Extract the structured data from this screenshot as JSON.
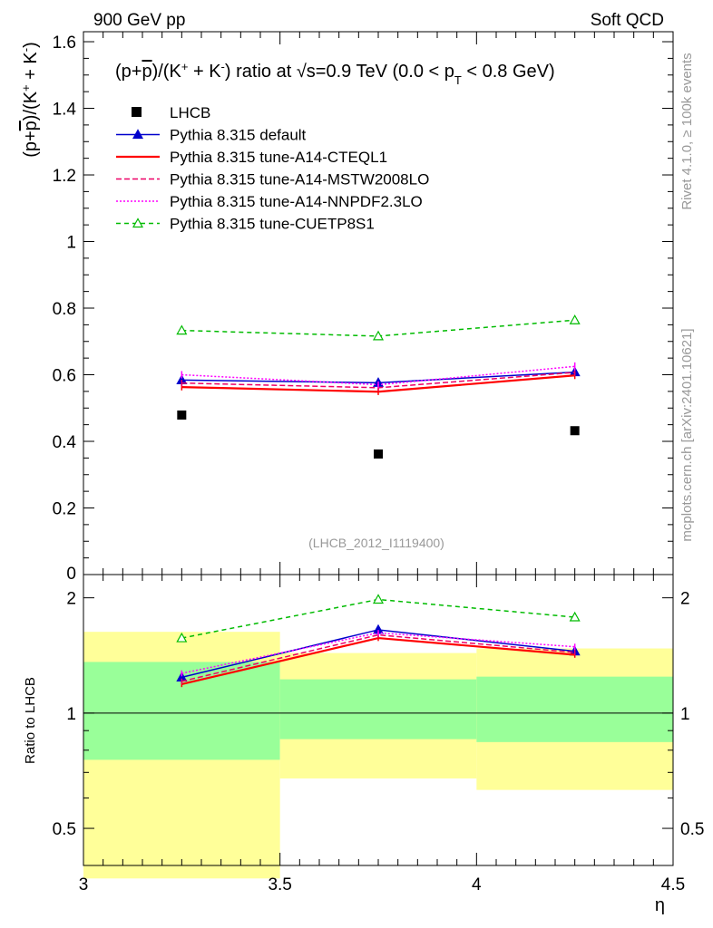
{
  "header": {
    "left": "900 GeV pp",
    "right": "Soft QCD"
  },
  "side_text": {
    "rivet": "Rivet 4.1.0, ≥ 100k events",
    "mcplots": "mcplots.cern.ch [arXiv:2401.10621]"
  },
  "chart_data": {
    "type": "line",
    "title": "(p+p̄)/(K⁺ + K⁻) ratio at √s=0.9 TeV (0.0 < pT < 0.8 GeV)",
    "title_parts": {
      "a": "(p+",
      "pbar": "p",
      "b": ")/(K",
      "plus": "+",
      "c": " + K",
      "minus": "-",
      "d": ") ratio at ",
      "sqrt": "√",
      "e": "s=0.9 TeV (0.0 < p",
      "sub": "T",
      "f": " < 0.8 GeV)"
    },
    "watermark": "(LHCB_2012_I1119400)",
    "xlabel": "η",
    "ylabel_parts": {
      "a": "(p+",
      "pbar": "p",
      "b": ")/(K",
      "plus": "+",
      "c": " + K",
      "minus": "-",
      "d": ")"
    },
    "ratio_ylabel": "Ratio to LHCB",
    "xlim": [
      3.0,
      4.5
    ],
    "ylim": [
      0.0,
      1.63
    ],
    "ratio_ylim": [
      0.4,
      2.3
    ],
    "x_ticks": [
      3.0,
      3.5,
      4.0,
      4.5
    ],
    "x_tick_labels": [
      "3",
      "3.5",
      "4",
      "4.5"
    ],
    "y_ticks": [
      0.2,
      0.4,
      0.6,
      0.8,
      1.0,
      1.2,
      1.4,
      1.6
    ],
    "y_tick_labels": [
      "0.2",
      "0.4",
      "0.6",
      "0.8",
      "1",
      "1.2",
      "1.4",
      "1.6"
    ],
    "y_zero_label": "0",
    "ratio_ticks": [
      0.5,
      1.0,
      2.0
    ],
    "ratio_tick_labels": [
      "0.5",
      "1",
      "2"
    ],
    "x": [
      3.25,
      3.75,
      4.25
    ],
    "bins": [
      [
        3.0,
        3.5
      ],
      [
        3.5,
        4.0
      ],
      [
        4.0,
        4.5
      ]
    ],
    "data": {
      "name": "LHCB",
      "values": [
        0.479,
        0.362,
        0.432
      ]
    },
    "band_green": [
      [
        0.755,
        1.36
      ],
      [
        0.855,
        1.225
      ],
      [
        0.84,
        1.245
      ]
    ],
    "band_yellow": [
      [
        0.37,
        1.63
      ],
      [
        0.675,
        1.435
      ],
      [
        0.63,
        1.475
      ]
    ],
    "series": [
      {
        "name": "Pythia 8.315 default",
        "color": "#0000cc",
        "dash": "",
        "marker": "triangle-filled",
        "values": [
          0.584,
          0.576,
          0.608
        ],
        "errors": [
          0.012,
          0.01,
          0.012
        ],
        "ratio": [
          1.24,
          1.65,
          1.45
        ]
      },
      {
        "name": "Pythia 8.315 tune-A14-CTEQL1",
        "color": "#ff0000",
        "dash": "",
        "marker": "tick",
        "values": [
          0.563,
          0.549,
          0.598
        ],
        "errors": [
          0.01,
          0.01,
          0.011
        ],
        "ratio": [
          1.19,
          1.57,
          1.42
        ]
      },
      {
        "name": "Pythia 8.315 tune-A14-MSTW2008LO",
        "color": "#ee0066",
        "dash": "6,3",
        "marker": "tick",
        "values": [
          0.575,
          0.561,
          0.607
        ],
        "errors": [
          0.01,
          0.01,
          0.011
        ],
        "ratio": [
          1.21,
          1.6,
          1.44
        ]
      },
      {
        "name": "Pythia 8.315 tune-A14-NNPDF2.3LO",
        "color": "#ff00ff",
        "dash": "2,2",
        "marker": "tick",
        "values": [
          0.6,
          0.57,
          0.625
        ],
        "errors": [
          0.011,
          0.01,
          0.012
        ],
        "ratio": [
          1.27,
          1.62,
          1.49
        ]
      },
      {
        "name": "Pythia 8.315 tune-CUETP8S1",
        "color": "#00bb00",
        "dash": "5,4",
        "marker": "triangle-open",
        "values": [
          0.733,
          0.716,
          0.764
        ],
        "errors": [
          0.012,
          0.01,
          0.012
        ],
        "ratio": [
          1.57,
          1.98,
          1.78
        ]
      }
    ]
  }
}
